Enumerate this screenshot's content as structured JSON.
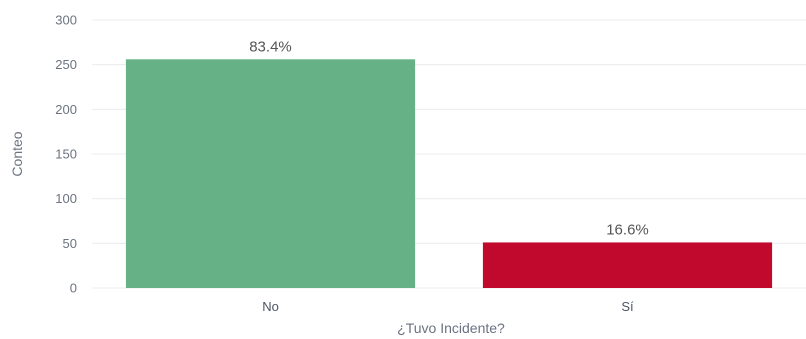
{
  "chart_data": {
    "type": "bar",
    "categories": [
      "No",
      "Sí"
    ],
    "values": [
      256,
      51
    ],
    "data_labels": [
      "83.4%",
      "16.6%"
    ],
    "colors": [
      "#66b185",
      "#c0092d"
    ],
    "title": "",
    "xlabel": "¿Tuvo Incidente?",
    "ylabel": "Conteo",
    "ylim": [
      0,
      300
    ],
    "yticks": [
      "0",
      "50",
      "100",
      "150",
      "200",
      "250",
      "300"
    ],
    "ytick_values": [
      0,
      50,
      100,
      150,
      200,
      250,
      300
    ],
    "grid": true,
    "legend": "none"
  }
}
